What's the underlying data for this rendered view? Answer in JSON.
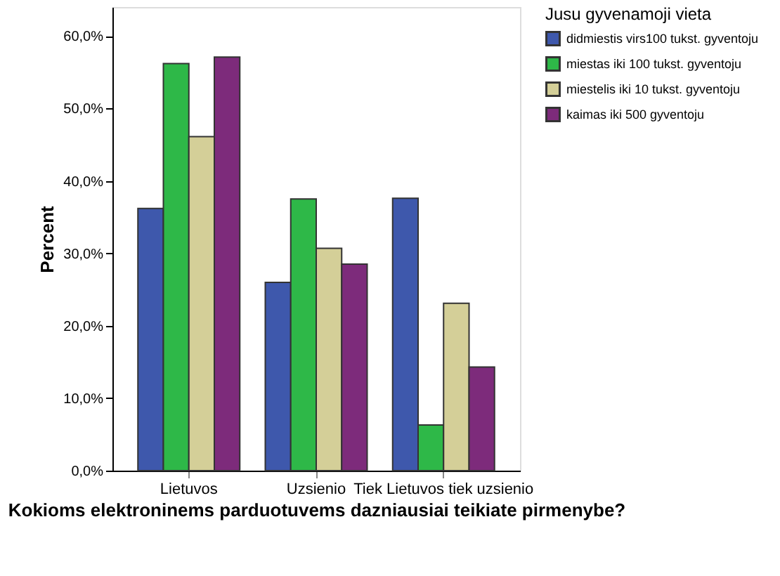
{
  "chart_data": {
    "type": "bar",
    "xlabel": "Kokioms elektroninems parduotuvems dazniausiai teikiate pirmenybe?",
    "ylabel": "Percent",
    "legend_title": "Jusu gyvenamoji vieta",
    "categories": [
      "Lietuvos",
      "Uzsienio",
      "Tiek Lietuvos tiek uzsienio"
    ],
    "series": [
      {
        "name": "didmiestis virs100 tukst. gyventoju",
        "color": "#3e58ac",
        "values": [
          36.2,
          26.0,
          37.6
        ]
      },
      {
        "name": "miestas iki 100 tukst. gyventoju",
        "color": "#2eb848",
        "values": [
          56.2,
          37.5,
          6.3
        ]
      },
      {
        "name": "miestelis iki 10 tukst. gyventoju",
        "color": "#d4cf98",
        "values": [
          46.1,
          30.7,
          23.1
        ]
      },
      {
        "name": "kaimas iki 500 gyventoju",
        "color": "#7d2b7b",
        "values": [
          57.1,
          28.5,
          14.3
        ]
      }
    ],
    "ylim": [
      0,
      64
    ],
    "yticks": [
      {
        "value": 0,
        "label": "0,0%"
      },
      {
        "value": 10,
        "label": "10,0%"
      },
      {
        "value": 20,
        "label": "20,0%"
      },
      {
        "value": 30,
        "label": "30,0%"
      },
      {
        "value": 40,
        "label": "40,0%"
      },
      {
        "value": 50,
        "label": "50,0%"
      },
      {
        "value": 60,
        "label": "60,0%"
      }
    ],
    "grid": false,
    "legend": "top right"
  }
}
